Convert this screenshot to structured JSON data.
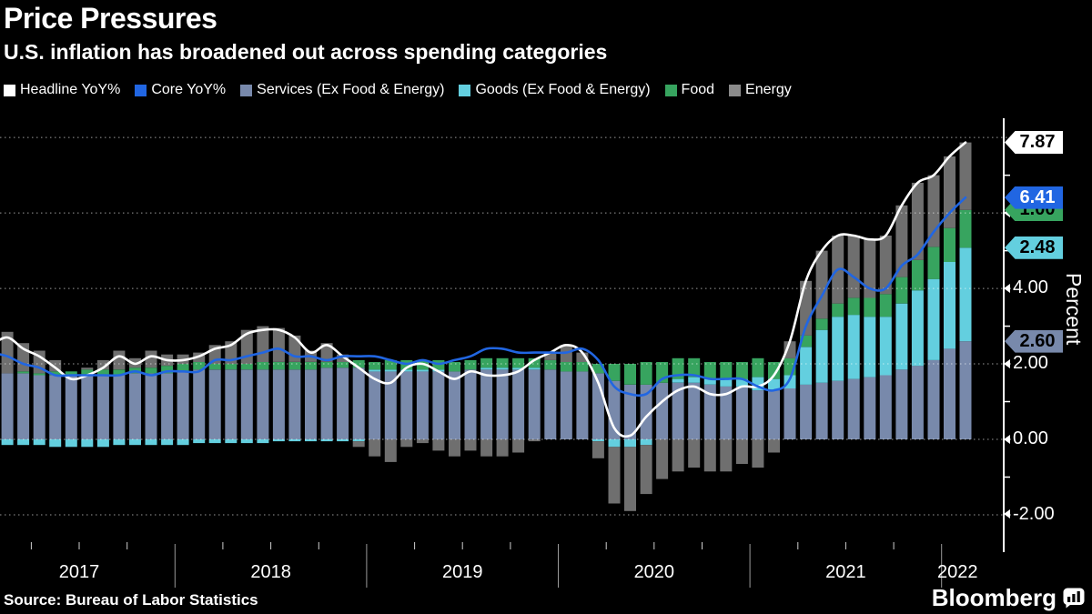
{
  "header": {
    "title": "Price Pressures",
    "subtitle": "U.S. inflation has broadened out across spending categories"
  },
  "legend": {
    "items": [
      {
        "id": "headline",
        "label": "Headline YoY%",
        "color": "#ffffff"
      },
      {
        "id": "core",
        "label": "Core YoY%",
        "color": "#2166e2"
      },
      {
        "id": "services",
        "label": "Services (Ex Food & Energy)",
        "color": "#7889ab"
      },
      {
        "id": "goods",
        "label": "Goods (Ex Food & Energy)",
        "color": "#63cfdf"
      },
      {
        "id": "food",
        "label": "Food",
        "color": "#37a45f"
      },
      {
        "id": "energy",
        "label": "Energy",
        "color": "#8a8a8a"
      }
    ]
  },
  "badges": [
    {
      "id": "headline",
      "text": "7.87",
      "anchor_value": 7.87,
      "bg": "#ffffff",
      "fg": "#000000"
    },
    {
      "id": "food",
      "text": "1.00",
      "anchor_value": 6.08,
      "bg": "#37a45f",
      "fg": "#000000"
    },
    {
      "id": "core",
      "text": "6.41",
      "anchor_value": 6.41,
      "bg": "#2166e2",
      "fg": "#ffffff"
    },
    {
      "id": "goods",
      "text": "2.48",
      "anchor_value": 5.08,
      "bg": "#63cfdf",
      "fg": "#000000"
    },
    {
      "id": "services",
      "text": "2.60",
      "anchor_value": 2.6,
      "bg": "#7889ab",
      "fg": "#000000"
    }
  ],
  "footer": {
    "source": "Source: Bureau of Labor Statistics",
    "brand": "Bloomberg"
  },
  "chart_data": {
    "type": "stacked-bar-with-lines",
    "title": "Price Pressures",
    "unit": "percent / percentage-point contributions, year over year",
    "x_axis": {
      "tick_labels": [
        "2017",
        "2018",
        "2019",
        "2020",
        "2021",
        "2022"
      ],
      "frequency": "monthly"
    },
    "y_axis": {
      "title": "Percent",
      "grid_values": [
        8,
        6,
        4,
        2,
        0,
        -2
      ],
      "tick_labels": [
        "6.00",
        "4.00",
        "2.00",
        "0.00",
        "-2.00"
      ],
      "tick_values": [
        6,
        4,
        2,
        0,
        -2
      ],
      "minor_tick_values": [
        7,
        5,
        3,
        1,
        -1
      ],
      "range": [
        -3.0,
        8.5
      ]
    },
    "months": [
      "2017-01",
      "2017-02",
      "2017-03",
      "2017-04",
      "2017-05",
      "2017-06",
      "2017-07",
      "2017-08",
      "2017-09",
      "2017-10",
      "2017-11",
      "2017-12",
      "2018-01",
      "2018-02",
      "2018-03",
      "2018-04",
      "2018-05",
      "2018-06",
      "2018-07",
      "2018-08",
      "2018-09",
      "2018-10",
      "2018-11",
      "2018-12",
      "2019-01",
      "2019-02",
      "2019-03",
      "2019-04",
      "2019-05",
      "2019-06",
      "2019-07",
      "2019-08",
      "2019-09",
      "2019-10",
      "2019-11",
      "2019-12",
      "2020-01",
      "2020-02",
      "2020-03",
      "2020-04",
      "2020-05",
      "2020-06",
      "2020-07",
      "2020-08",
      "2020-09",
      "2020-10",
      "2020-11",
      "2020-12",
      "2021-01",
      "2021-02",
      "2021-03",
      "2021-04",
      "2021-05",
      "2021-06",
      "2021-07",
      "2021-08",
      "2021-09",
      "2021-10",
      "2021-11",
      "2021-12",
      "2022-01",
      "2022-02"
    ],
    "series": [
      {
        "id": "services",
        "name": "Services (Ex Food & Energy)",
        "kind": "bar",
        "color": "#7889ab",
        "values": [
          1.75,
          1.75,
          1.75,
          1.7,
          1.7,
          1.7,
          1.7,
          1.7,
          1.7,
          1.75,
          1.75,
          1.75,
          1.8,
          1.85,
          1.85,
          1.85,
          1.85,
          1.85,
          1.85,
          1.85,
          1.85,
          1.9,
          1.9,
          1.9,
          1.8,
          1.8,
          1.8,
          1.8,
          1.8,
          1.8,
          1.85,
          1.85,
          1.85,
          1.85,
          1.85,
          1.85,
          1.8,
          1.8,
          1.75,
          1.55,
          1.45,
          1.45,
          1.5,
          1.5,
          1.5,
          1.45,
          1.4,
          1.4,
          1.3,
          1.3,
          1.35,
          1.45,
          1.5,
          1.55,
          1.6,
          1.65,
          1.7,
          1.85,
          1.95,
          2.1,
          2.4,
          2.6
        ]
      },
      {
        "id": "goods",
        "name": "Goods (Ex Food & Energy)",
        "kind": "bar",
        "color": "#63cfdf",
        "values": [
          -0.1,
          -0.15,
          -0.15,
          -0.15,
          -0.2,
          -0.2,
          -0.2,
          -0.2,
          -0.15,
          -0.15,
          -0.15,
          -0.15,
          -0.15,
          -0.1,
          -0.1,
          -0.1,
          -0.1,
          -0.1,
          -0.05,
          -0.05,
          -0.05,
          -0.05,
          -0.05,
          -0.05,
          0.05,
          0.05,
          0.05,
          0.05,
          0.05,
          0.0,
          0.0,
          0.05,
          0.05,
          0.05,
          0.05,
          0.0,
          0.0,
          0.0,
          -0.05,
          -0.2,
          -0.2,
          -0.15,
          0.0,
          0.1,
          0.15,
          0.15,
          0.2,
          0.2,
          0.35,
          0.3,
          0.35,
          1.0,
          1.4,
          1.7,
          1.7,
          1.6,
          1.55,
          1.75,
          2.0,
          2.15,
          2.3,
          2.48
        ]
      },
      {
        "id": "food",
        "name": "Food",
        "kind": "bar",
        "color": "#37a45f",
        "values": [
          0.0,
          0.0,
          0.05,
          0.05,
          0.1,
          0.1,
          0.15,
          0.15,
          0.15,
          0.15,
          0.15,
          0.2,
          0.2,
          0.2,
          0.15,
          0.15,
          0.15,
          0.2,
          0.2,
          0.2,
          0.2,
          0.15,
          0.15,
          0.2,
          0.2,
          0.25,
          0.25,
          0.25,
          0.25,
          0.25,
          0.25,
          0.25,
          0.25,
          0.25,
          0.25,
          0.25,
          0.25,
          0.25,
          0.25,
          0.45,
          0.55,
          0.6,
          0.55,
          0.55,
          0.5,
          0.45,
          0.45,
          0.45,
          0.5,
          0.45,
          0.45,
          0.3,
          0.3,
          0.35,
          0.45,
          0.5,
          0.6,
          0.7,
          0.8,
          0.85,
          0.9,
          1.0
        ]
      },
      {
        "id": "energy",
        "name": "Energy",
        "kind": "bar",
        "color": "#6f6f6f",
        "values": [
          0.85,
          1.1,
          0.75,
          0.6,
          0.3,
          0.0,
          0.05,
          0.25,
          0.5,
          0.25,
          0.45,
          0.3,
          0.25,
          0.25,
          0.5,
          0.6,
          0.9,
          0.95,
          0.9,
          0.7,
          0.3,
          0.5,
          0.2,
          -0.15,
          -0.45,
          -0.6,
          -0.2,
          -0.1,
          -0.3,
          -0.45,
          -0.3,
          -0.45,
          -0.45,
          -0.35,
          -0.05,
          0.2,
          0.45,
          0.25,
          -0.45,
          -1.5,
          -1.7,
          -1.3,
          -1.05,
          -0.85,
          -0.75,
          -0.85,
          -0.85,
          -0.65,
          -0.75,
          -0.35,
          0.45,
          1.45,
          1.8,
          1.8,
          1.65,
          1.55,
          1.55,
          1.9,
          2.05,
          1.9,
          1.9,
          1.79
        ]
      },
      {
        "id": "headline",
        "name": "Headline YoY%",
        "kind": "line",
        "color": "#ffffff",
        "values": [
          2.5,
          2.7,
          2.4,
          2.2,
          1.9,
          1.6,
          1.7,
          1.9,
          2.2,
          2.0,
          2.2,
          2.1,
          2.1,
          2.2,
          2.4,
          2.5,
          2.8,
          2.9,
          2.9,
          2.7,
          2.3,
          2.5,
          2.2,
          1.9,
          1.6,
          1.5,
          1.9,
          2.0,
          1.8,
          1.6,
          1.8,
          1.7,
          1.7,
          1.8,
          2.1,
          2.3,
          2.5,
          2.3,
          1.5,
          0.3,
          0.1,
          0.6,
          1.0,
          1.3,
          1.4,
          1.2,
          1.2,
          1.4,
          1.4,
          1.7,
          2.6,
          4.2,
          5.0,
          5.4,
          5.4,
          5.3,
          5.4,
          6.2,
          6.8,
          7.0,
          7.5,
          7.87
        ]
      },
      {
        "id": "core",
        "name": "Core YoY%",
        "kind": "line",
        "color": "#2166e2",
        "values": [
          2.3,
          2.2,
          2.0,
          1.9,
          1.7,
          1.7,
          1.7,
          1.7,
          1.7,
          1.8,
          1.7,
          1.8,
          1.8,
          1.8,
          2.1,
          2.1,
          2.2,
          2.3,
          2.4,
          2.2,
          2.2,
          2.1,
          2.2,
          2.2,
          2.2,
          2.1,
          2.0,
          2.1,
          2.0,
          2.1,
          2.2,
          2.4,
          2.4,
          2.3,
          2.3,
          2.3,
          2.3,
          2.4,
          2.1,
          1.4,
          1.2,
          1.2,
          1.6,
          1.7,
          1.7,
          1.6,
          1.6,
          1.6,
          1.4,
          1.3,
          1.6,
          3.0,
          3.8,
          4.5,
          4.3,
          4.0,
          4.0,
          4.6,
          4.9,
          5.5,
          6.0,
          6.41
        ]
      }
    ]
  }
}
